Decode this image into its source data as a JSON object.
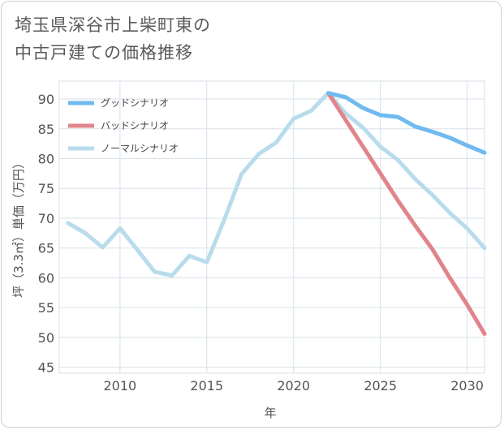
{
  "title_line1": "埼玉県深谷市上柴町東の",
  "title_line2": "中古戸建ての価格推移",
  "chart_data": {
    "type": "line",
    "xlabel": "年",
    "ylabel": "坪（3.3㎡）単価（万円）",
    "xlim": [
      2006.5,
      2031
    ],
    "ylim": [
      44,
      93
    ],
    "xticks": [
      2010,
      2015,
      2020,
      2025,
      2030
    ],
    "yticks": [
      45,
      50,
      55,
      60,
      65,
      70,
      75,
      80,
      85,
      90
    ],
    "grid": true,
    "legend_position": "top-left",
    "series": [
      {
        "name": "グッドシナリオ",
        "color": "#6fbaf0",
        "x": [
          2022,
          2023,
          2024,
          2025,
          2026,
          2027,
          2028,
          2029,
          2030,
          2031
        ],
        "y": [
          91.0,
          90.3,
          88.5,
          87.3,
          87.0,
          85.4,
          84.5,
          83.5,
          82.2,
          81.0
        ]
      },
      {
        "name": "バッドシナリオ",
        "color": "#e0848c",
        "x": [
          2022,
          2023,
          2024,
          2025,
          2026,
          2027,
          2028,
          2029,
          2030,
          2031
        ],
        "y": [
          91.0,
          86.5,
          82.0,
          77.5,
          73.0,
          68.8,
          64.8,
          60.0,
          55.5,
          50.6
        ]
      },
      {
        "name": "ノーマルシナリオ",
        "color": "#b9dcec",
        "x": [
          2007,
          2008,
          2009,
          2010,
          2011,
          2012,
          2013,
          2014,
          2015,
          2016,
          2017,
          2018,
          2019,
          2020,
          2021,
          2022,
          2023,
          2024,
          2025,
          2026,
          2027,
          2028,
          2029,
          2030,
          2031
        ],
        "y": [
          69.2,
          67.5,
          65.1,
          68.3,
          64.7,
          61.0,
          60.4,
          63.7,
          62.6,
          69.7,
          77.4,
          80.8,
          82.7,
          86.7,
          88.0,
          91.0,
          87.6,
          85.2,
          82.0,
          79.8,
          76.6,
          73.9,
          70.9,
          68.3,
          65.0
        ]
      }
    ]
  }
}
